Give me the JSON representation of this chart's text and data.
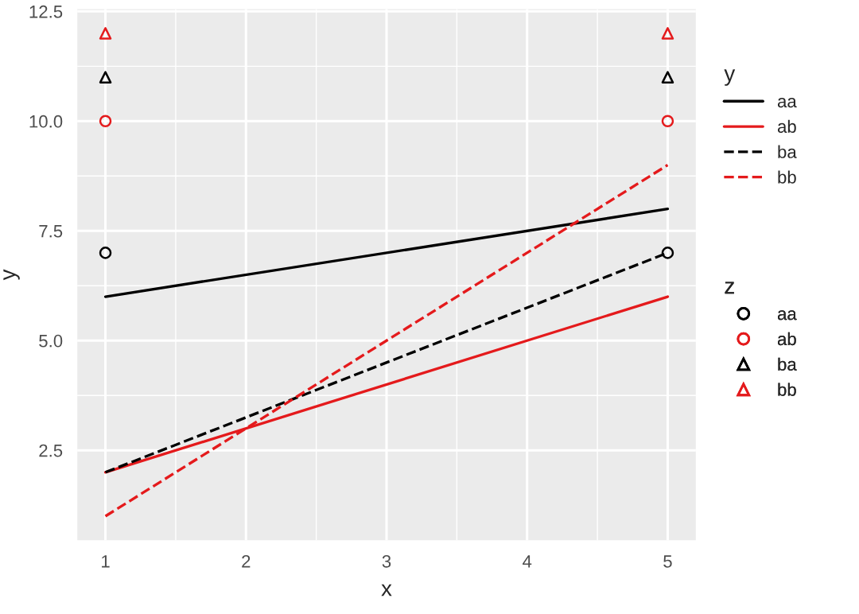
{
  "chart_data": {
    "type": "line",
    "xlabel": "x",
    "ylabel": "y",
    "legend_title": "y",
    "annotations": [
      "z"
    ],
    "x": [
      1,
      5
    ],
    "xlim": [
      0.8,
      5.2
    ],
    "ylim": [
      0.45,
      12.55
    ],
    "xticks": [
      1,
      2,
      3,
      4,
      5
    ],
    "yticks": [
      {
        "value": 2.5,
        "label": "2.5"
      },
      {
        "value": 5,
        "label": "5.0"
      },
      {
        "value": 7.5,
        "label": "7.5"
      },
      {
        "value": 10,
        "label": "10.0"
      },
      {
        "value": 12.5,
        "label": "12.5"
      }
    ],
    "grid": true,
    "legend": "right",
    "series": [
      {
        "name": "aa",
        "color": "#000000",
        "line_style": "solid",
        "values": [
          6,
          8
        ]
      },
      {
        "name": "ab",
        "color": "#e41a1c",
        "line_style": "solid",
        "values": [
          2,
          6
        ]
      },
      {
        "name": "ba",
        "color": "#000000",
        "line_style": "dashed",
        "values": [
          2,
          7
        ]
      },
      {
        "name": "bb",
        "color": "#e41a1c",
        "line_style": "dashed",
        "values": [
          1,
          9
        ]
      },
      {
        "name": "aa",
        "color": "#000000",
        "type": "scatter",
        "marker": "circle",
        "values": [
          7,
          7
        ]
      },
      {
        "name": "ab",
        "color": "#e41a1c",
        "type": "scatter",
        "marker": "circle",
        "values": [
          10,
          10
        ]
      },
      {
        "name": "ba",
        "color": "#000000",
        "type": "scatter",
        "marker": "triangle",
        "values": [
          11,
          11
        ]
      },
      {
        "name": "bb",
        "color": "#e41a1c",
        "type": "scatter",
        "marker": "triangle",
        "values": [
          12,
          12
        ]
      }
    ]
  }
}
